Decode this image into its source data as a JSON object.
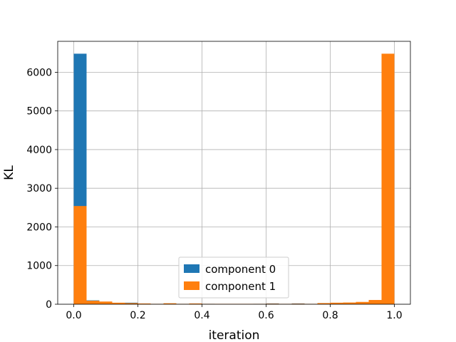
{
  "chart_data": {
    "type": "bar",
    "title": "",
    "xlabel": "iteration",
    "ylabel": "KL",
    "xlim": [
      -0.05,
      1.05
    ],
    "ylim": [
      0,
      6800
    ],
    "grid": true,
    "legend_position": "lower center",
    "xticks": [
      0.0,
      0.2,
      0.4,
      0.6,
      0.8,
      1.0
    ],
    "xtick_labels": [
      "0.0",
      "0.2",
      "0.4",
      "0.6",
      "0.8",
      "1.0"
    ],
    "yticks": [
      0,
      1000,
      2000,
      3000,
      4000,
      5000,
      6000
    ],
    "ytick_labels": [
      "0",
      "1000",
      "2000",
      "3000",
      "4000",
      "5000",
      "6000"
    ],
    "bin_edges": [
      0.0,
      0.04,
      0.08,
      0.12,
      0.16,
      0.2,
      0.24,
      0.28,
      0.32,
      0.36,
      0.4,
      0.44,
      0.48,
      0.52,
      0.56,
      0.6,
      0.64,
      0.68,
      0.72,
      0.76,
      0.8,
      0.84,
      0.88,
      0.92,
      0.96,
      1.0
    ],
    "series": [
      {
        "name": "component 0",
        "color": "#1f77b4",
        "values": [
          6480,
          100,
          50,
          30,
          40,
          15,
          10,
          20,
          10,
          15,
          10,
          5,
          5,
          5,
          10,
          20,
          10,
          20,
          10,
          10,
          10,
          10,
          15,
          10,
          90
        ]
      },
      {
        "name": "component 1",
        "color": "#ff7f0e",
        "values": [
          2540,
          90,
          70,
          40,
          30,
          20,
          10,
          25,
          10,
          20,
          10,
          10,
          10,
          10,
          10,
          15,
          10,
          15,
          10,
          30,
          40,
          45,
          60,
          110,
          6480
        ]
      }
    ]
  }
}
